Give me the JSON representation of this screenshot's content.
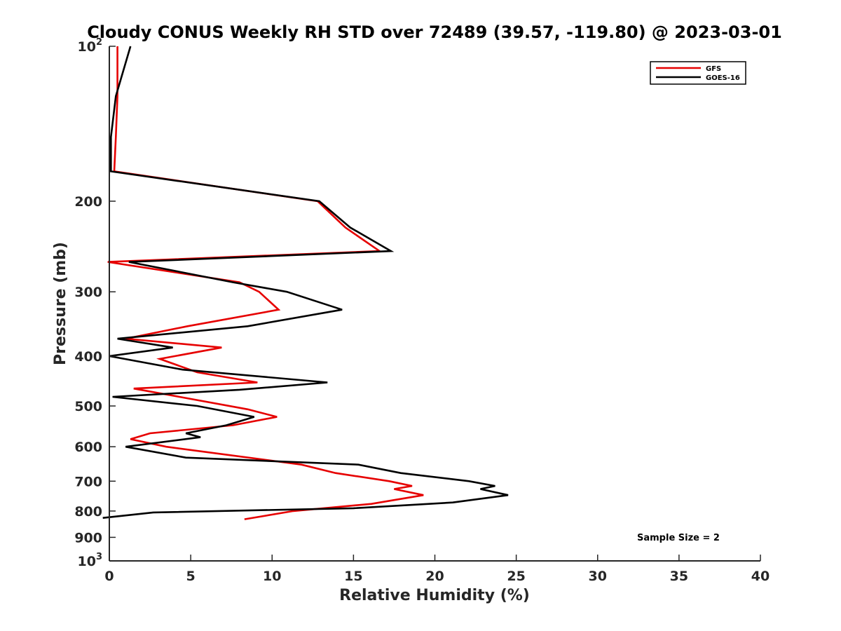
{
  "chart_data": {
    "type": "line",
    "title": "Cloudy CONUS Weekly RH STD over 72489 (39.57, -119.80) @ 2023-03-01",
    "xlabel": "Relative Humidity (%)",
    "ylabel": "Pressure (mb)",
    "xlim": [
      0,
      40
    ],
    "ylim": [
      100,
      1000
    ],
    "y_scale": "log",
    "y_reversed": true,
    "x_ticks": [
      0,
      5,
      10,
      15,
      20,
      25,
      30,
      35,
      40
    ],
    "x_tick_labels": [
      "0",
      "5",
      "10",
      "15",
      "20",
      "25",
      "30",
      "35",
      "40"
    ],
    "y_ticks": [
      100,
      200,
      300,
      400,
      500,
      600,
      700,
      800,
      900,
      1000
    ],
    "y_tick_labels": [
      {
        "base": "10",
        "exp": "2"
      },
      {
        "base": "200",
        "exp": ""
      },
      {
        "base": "300",
        "exp": ""
      },
      {
        "base": "400",
        "exp": ""
      },
      {
        "base": "500",
        "exp": ""
      },
      {
        "base": "600",
        "exp": ""
      },
      {
        "base": "700",
        "exp": ""
      },
      {
        "base": "800",
        "exp": ""
      },
      {
        "base": "900",
        "exp": ""
      },
      {
        "base": "10",
        "exp": "3"
      }
    ],
    "grid": false,
    "legend_position": "top-right",
    "series": [
      {
        "name": "GFS",
        "color": "#e60000",
        "points": [
          [
            0.5,
            100
          ],
          [
            0.5,
            125
          ],
          [
            0.4,
            150
          ],
          [
            0.3,
            175
          ],
          [
            12.8,
            200
          ],
          [
            14.5,
            225
          ],
          [
            16.6,
            250
          ],
          [
            -0.1,
            262.5
          ],
          [
            8.0,
            287.5
          ],
          [
            9.2,
            300
          ],
          [
            10.4,
            325
          ],
          [
            4.8,
            350
          ],
          [
            1.0,
            370
          ],
          [
            6.9,
            385
          ],
          [
            3.1,
            405
          ],
          [
            5.4,
            430
          ],
          [
            9.1,
            450
          ],
          [
            1.5,
            462.5
          ],
          [
            4.3,
            480
          ],
          [
            8.5,
            507.5
          ],
          [
            10.3,
            525
          ],
          [
            7.6,
            545
          ],
          [
            2.5,
            565
          ],
          [
            1.3,
            580
          ],
          [
            3.5,
            600
          ],
          [
            11.8,
            650
          ],
          [
            13.9,
            675
          ],
          [
            17.2,
            700
          ],
          [
            18.6,
            715
          ],
          [
            17.5,
            725
          ],
          [
            19.3,
            745
          ],
          [
            16.1,
            775
          ],
          [
            11.3,
            800
          ],
          [
            8.3,
            830
          ]
        ]
      },
      {
        "name": "GOES-16",
        "color": "#000000",
        "points": [
          [
            1.3,
            100
          ],
          [
            0.4,
            125
          ],
          [
            0.1,
            150
          ],
          [
            0.1,
            175
          ],
          [
            12.9,
            200
          ],
          [
            14.8,
            225
          ],
          [
            17.3,
            250
          ],
          [
            1.2,
            262.5
          ],
          [
            7.6,
            287.5
          ],
          [
            10.9,
            300
          ],
          [
            14.3,
            325
          ],
          [
            8.5,
            350
          ],
          [
            0.5,
            370
          ],
          [
            3.9,
            385
          ],
          [
            0.0,
            400
          ],
          [
            4.5,
            425
          ],
          [
            13.4,
            450
          ],
          [
            8.0,
            465
          ],
          [
            0.2,
            480
          ],
          [
            5.4,
            500
          ],
          [
            8.9,
            525
          ],
          [
            7.2,
            545
          ],
          [
            4.7,
            565
          ],
          [
            5.6,
            575
          ],
          [
            1.0,
            600
          ],
          [
            4.7,
            630
          ],
          [
            15.3,
            650
          ],
          [
            17.9,
            675
          ],
          [
            22.1,
            700
          ],
          [
            23.7,
            715
          ],
          [
            22.8,
            725
          ],
          [
            24.5,
            745
          ],
          [
            21.1,
            770
          ],
          [
            15.0,
            790
          ],
          [
            2.7,
            805
          ],
          [
            -0.4,
            825
          ]
        ]
      }
    ],
    "annotations": [
      "Sample Size = 2"
    ]
  }
}
